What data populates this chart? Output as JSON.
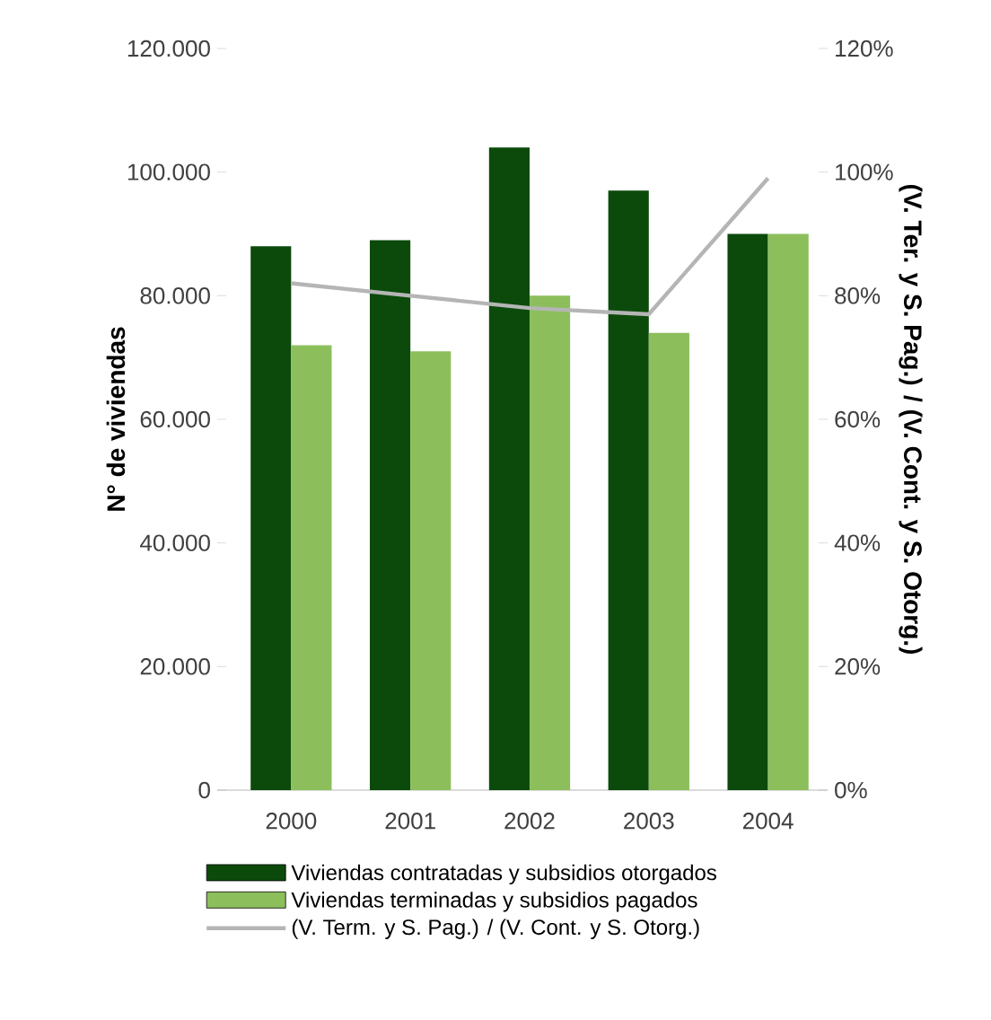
{
  "chart_data": {
    "type": "bar",
    "categories": [
      "2000",
      "2001",
      "2002",
      "2003",
      "2004"
    ],
    "ylabel": "N° de viviendas",
    "y2label": "(V. Ter. y S. Pag.) / (V. Cont. y S. Otorg.)",
    "ylim": [
      0,
      120000
    ],
    "yticks": [
      {
        "value": 0,
        "label": "0"
      },
      {
        "value": 20000,
        "label": "20.000"
      },
      {
        "value": 40000,
        "label": "40.000"
      },
      {
        "value": 60000,
        "label": "60.000"
      },
      {
        "value": 80000,
        "label": "80.000"
      },
      {
        "value": 100000,
        "label": "100.000"
      },
      {
        "value": 120000,
        "label": "120.000"
      }
    ],
    "y2lim": [
      0,
      120
    ],
    "y2ticks": [
      {
        "value": 0,
        "label": "0%"
      },
      {
        "value": 20,
        "label": "20%"
      },
      {
        "value": 40,
        "label": "40%"
      },
      {
        "value": 60,
        "label": "60%"
      },
      {
        "value": 80,
        "label": "80%"
      },
      {
        "value": 100,
        "label": "100%"
      },
      {
        "value": 120,
        "label": "120%"
      }
    ],
    "legend": "bottom",
    "series": [
      {
        "name": "Viviendas contratadas y subsidios otorgados",
        "color": "#0b4a0b",
        "values": [
          88000,
          89000,
          104000,
          97000,
          90000
        ]
      },
      {
        "name": "Viviendas terminadas y subsidios pagados",
        "color": "#8cbf5c",
        "values": [
          72000,
          71000,
          80000,
          74000,
          90000
        ]
      },
      {
        "name": "(V. Term. y S. Pag.) / (V. Cont. y S. Otorg.)",
        "type": "line",
        "axis": "y2",
        "color": "#b5b5b5",
        "values": [
          82,
          80,
          78,
          77,
          99
        ]
      }
    ]
  }
}
